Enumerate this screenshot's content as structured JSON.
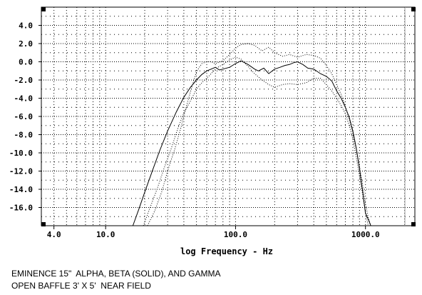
{
  "chart_data": {
    "type": "line",
    "xscale": "log",
    "xlim": [
      3.2,
      2400
    ],
    "ylim": [
      -18,
      6
    ],
    "grid": true,
    "xlabel": "log Frequency - Hz",
    "ylabel": "",
    "x_tick_labels": [
      "4.0",
      "10.0",
      "100.0",
      "1000.0"
    ],
    "x_tick_values": [
      4,
      10,
      100,
      1000
    ],
    "y_tick_values": [
      4,
      2,
      0,
      -2,
      -4,
      -6,
      -8,
      -10,
      -12,
      -14,
      -16
    ],
    "y_tick_labels": [
      "4.0",
      "2.0",
      "0.0",
      "-2.0",
      "-4.0",
      "-6.0",
      "-8.0",
      "-10.0",
      "-12.0",
      "-14.0",
      "-16.0"
    ],
    "caption_lines": [
      "EMINENCE 15\"  ALPHA, BETA (SOLID), AND GAMMA",
      "OPEN BAFFLE 3' X 5'  NEAR FIELD"
    ],
    "series": [
      {
        "style": "solid",
        "color": "#000000",
        "x": [
          16.2,
          18,
          20,
          23,
          26,
          30,
          35,
          40,
          45,
          50,
          55,
          60,
          65,
          70,
          75,
          80,
          90,
          100,
          110,
          125,
          140,
          150,
          165,
          180,
          200,
          220,
          240,
          260,
          280,
          300,
          330,
          360,
          400,
          450,
          500,
          550,
          600,
          650,
          700,
          750,
          800,
          850,
          900,
          950,
          1000,
          1050,
          1100
        ],
        "values": [
          -18,
          -16.2,
          -14.3,
          -11.9,
          -9.8,
          -7.6,
          -5.5,
          -3.9,
          -2.8,
          -2.0,
          -1.4,
          -1.0,
          -0.8,
          -0.6,
          -0.9,
          -0.8,
          -0.6,
          -0.2,
          0.1,
          -0.3,
          -0.8,
          -1.0,
          -0.7,
          -1.3,
          -0.8,
          -0.6,
          -0.4,
          -0.3,
          -0.1,
          0.0,
          -0.3,
          -0.7,
          -0.8,
          -1.3,
          -1.6,
          -2.1,
          -3.2,
          -4.0,
          -5.0,
          -6.1,
          -7.6,
          -9.5,
          -11.8,
          -14.2,
          -16.6,
          -17.3,
          -18
        ]
      },
      {
        "style": "dotted",
        "color": "#000000",
        "x": [
          19.5,
          22,
          25,
          28,
          32,
          36,
          40,
          45,
          50,
          55,
          60,
          65,
          70,
          75,
          80,
          90,
          100,
          110,
          125,
          140,
          160,
          180,
          200,
          230,
          260,
          300,
          350,
          400,
          450,
          500,
          550,
          600,
          650,
          700,
          750,
          800,
          850,
          900,
          950,
          1000,
          1050
        ],
        "values": [
          -18,
          -16.0,
          -13.9,
          -11.8,
          -9.5,
          -7.3,
          -5.6,
          -4.3,
          -3.0,
          -2.3,
          -1.8,
          -1.3,
          -0.8,
          -0.5,
          -0.3,
          0.2,
          0.5,
          0.3,
          -0.5,
          -1.3,
          -2.0,
          -2.5,
          -2.8,
          -2.5,
          -2.4,
          -2.5,
          -2.3,
          -1.8,
          -1.8,
          -2.5,
          -3.2,
          -4.0,
          -4.8,
          -5.7,
          -7.0,
          -8.5,
          -10.5,
          -12.6,
          -14.5,
          -16.6,
          -18
        ]
      },
      {
        "style": "dotted",
        "color": "#000000",
        "x": [
          21,
          24,
          27,
          30,
          34,
          38,
          42,
          46,
          50,
          55,
          60,
          65,
          70,
          80,
          90,
          100,
          110,
          125,
          140,
          160,
          180,
          200,
          230,
          260,
          300,
          350,
          400,
          450,
          500,
          550,
          600,
          650,
          700,
          750,
          800,
          850,
          900,
          950,
          1000,
          1050,
          1100
        ],
        "values": [
          -18,
          -16.3,
          -14.3,
          -12.0,
          -9.6,
          -7.2,
          -4.8,
          -2.8,
          -1.1,
          -0.2,
          0.0,
          0.0,
          -0.2,
          0.1,
          0.8,
          1.5,
          1.9,
          2.0,
          1.8,
          1.2,
          1.6,
          1.0,
          0.6,
          0.8,
          0.5,
          0.8,
          0.7,
          0.4,
          -0.4,
          -1.3,
          -2.5,
          -3.6,
          -4.9,
          -6.3,
          -7.9,
          -9.6,
          -11.5,
          -13.5,
          -15.6,
          -17.1,
          -18
        ]
      }
    ]
  }
}
